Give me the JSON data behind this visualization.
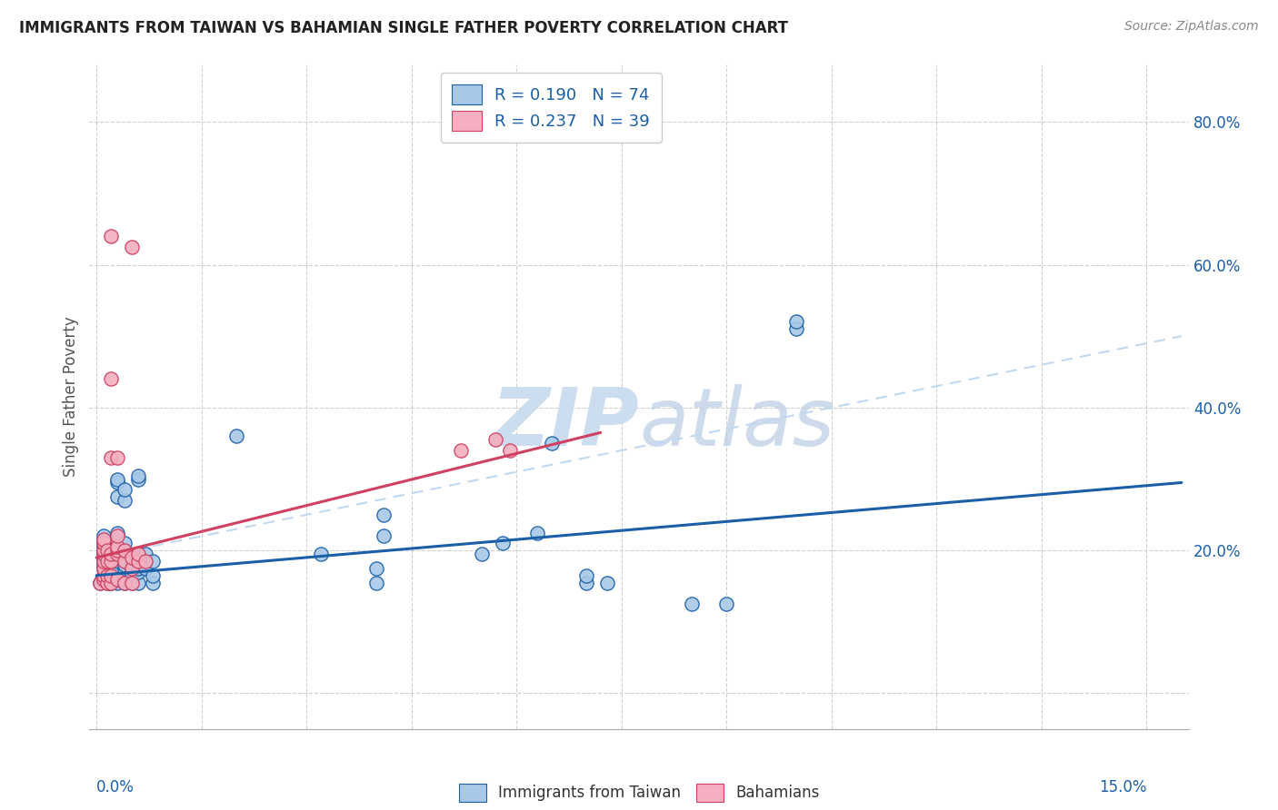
{
  "title": "IMMIGRANTS FROM TAIWAN VS BAHAMIAN SINGLE FATHER POVERTY CORRELATION CHART",
  "source": "Source: ZipAtlas.com",
  "ylabel": "Single Father Poverty",
  "xlim": [
    -0.001,
    0.156
  ],
  "ylim": [
    -0.05,
    0.88
  ],
  "color_blue": "#a8c8e8",
  "color_pink": "#f4b0c0",
  "line_color_blue": "#1a5fa8",
  "line_color_pink": "#d04060",
  "line_color_dashed": "#c0d8f0",
  "watermark_color": "#ccddf0",
  "blue_trend": [
    0.0,
    0.155,
    0.165,
    0.295
  ],
  "pink_trend": [
    0.0,
    0.072,
    0.19,
    0.365
  ],
  "dashed_trend": [
    0.0,
    0.155,
    0.19,
    0.5
  ],
  "blue_points": [
    [
      0.0005,
      0.155
    ],
    [
      0.0008,
      0.16
    ],
    [
      0.001,
      0.175
    ],
    [
      0.001,
      0.18
    ],
    [
      0.001,
      0.185
    ],
    [
      0.001,
      0.19
    ],
    [
      0.001,
      0.195
    ],
    [
      0.001,
      0.2
    ],
    [
      0.001,
      0.205
    ],
    [
      0.001,
      0.21
    ],
    [
      0.001,
      0.215
    ],
    [
      0.001,
      0.22
    ],
    [
      0.0015,
      0.155
    ],
    [
      0.0015,
      0.165
    ],
    [
      0.0015,
      0.17
    ],
    [
      0.0015,
      0.175
    ],
    [
      0.0015,
      0.18
    ],
    [
      0.0015,
      0.19
    ],
    [
      0.0015,
      0.2
    ],
    [
      0.002,
      0.155
    ],
    [
      0.002,
      0.16
    ],
    [
      0.002,
      0.165
    ],
    [
      0.002,
      0.17
    ],
    [
      0.002,
      0.175
    ],
    [
      0.002,
      0.185
    ],
    [
      0.0025,
      0.16
    ],
    [
      0.0025,
      0.175
    ],
    [
      0.003,
      0.155
    ],
    [
      0.003,
      0.16
    ],
    [
      0.003,
      0.185
    ],
    [
      0.003,
      0.205
    ],
    [
      0.003,
      0.225
    ],
    [
      0.003,
      0.275
    ],
    [
      0.003,
      0.295
    ],
    [
      0.003,
      0.3
    ],
    [
      0.004,
      0.155
    ],
    [
      0.004,
      0.16
    ],
    [
      0.004,
      0.165
    ],
    [
      0.004,
      0.175
    ],
    [
      0.004,
      0.18
    ],
    [
      0.004,
      0.21
    ],
    [
      0.004,
      0.27
    ],
    [
      0.004,
      0.285
    ],
    [
      0.005,
      0.155
    ],
    [
      0.005,
      0.165
    ],
    [
      0.005,
      0.175
    ],
    [
      0.006,
      0.155
    ],
    [
      0.006,
      0.17
    ],
    [
      0.006,
      0.175
    ],
    [
      0.006,
      0.195
    ],
    [
      0.006,
      0.3
    ],
    [
      0.006,
      0.305
    ],
    [
      0.007,
      0.175
    ],
    [
      0.007,
      0.195
    ],
    [
      0.008,
      0.155
    ],
    [
      0.008,
      0.165
    ],
    [
      0.008,
      0.185
    ],
    [
      0.02,
      0.36
    ],
    [
      0.032,
      0.195
    ],
    [
      0.04,
      0.155
    ],
    [
      0.04,
      0.175
    ],
    [
      0.041,
      0.22
    ],
    [
      0.041,
      0.25
    ],
    [
      0.055,
      0.195
    ],
    [
      0.058,
      0.21
    ],
    [
      0.063,
      0.225
    ],
    [
      0.065,
      0.35
    ],
    [
      0.07,
      0.155
    ],
    [
      0.07,
      0.165
    ],
    [
      0.073,
      0.155
    ],
    [
      0.085,
      0.125
    ],
    [
      0.09,
      0.125
    ],
    [
      0.1,
      0.51
    ],
    [
      0.1,
      0.52
    ]
  ],
  "pink_points": [
    [
      0.0005,
      0.155
    ],
    [
      0.001,
      0.16
    ],
    [
      0.001,
      0.165
    ],
    [
      0.001,
      0.175
    ],
    [
      0.001,
      0.185
    ],
    [
      0.001,
      0.195
    ],
    [
      0.001,
      0.2
    ],
    [
      0.001,
      0.21
    ],
    [
      0.001,
      0.215
    ],
    [
      0.0015,
      0.155
    ],
    [
      0.0015,
      0.165
    ],
    [
      0.0015,
      0.185
    ],
    [
      0.0015,
      0.2
    ],
    [
      0.002,
      0.155
    ],
    [
      0.002,
      0.165
    ],
    [
      0.002,
      0.185
    ],
    [
      0.002,
      0.195
    ],
    [
      0.002,
      0.33
    ],
    [
      0.002,
      0.44
    ],
    [
      0.003,
      0.16
    ],
    [
      0.003,
      0.195
    ],
    [
      0.003,
      0.2
    ],
    [
      0.003,
      0.205
    ],
    [
      0.003,
      0.22
    ],
    [
      0.003,
      0.33
    ],
    [
      0.004,
      0.155
    ],
    [
      0.004,
      0.185
    ],
    [
      0.004,
      0.2
    ],
    [
      0.005,
      0.155
    ],
    [
      0.005,
      0.175
    ],
    [
      0.005,
      0.19
    ],
    [
      0.005,
      0.625
    ],
    [
      0.006,
      0.185
    ],
    [
      0.006,
      0.195
    ],
    [
      0.007,
      0.185
    ],
    [
      0.052,
      0.34
    ],
    [
      0.057,
      0.355
    ],
    [
      0.059,
      0.34
    ],
    [
      0.002,
      0.64
    ]
  ],
  "legend_R1": "R = 0.190",
  "legend_N1": "N = 74",
  "legend_R2": "R = 0.237",
  "legend_N2": "N = 39",
  "legend_bottom1": "Immigrants from Taiwan",
  "legend_bottom2": "Bahamians"
}
